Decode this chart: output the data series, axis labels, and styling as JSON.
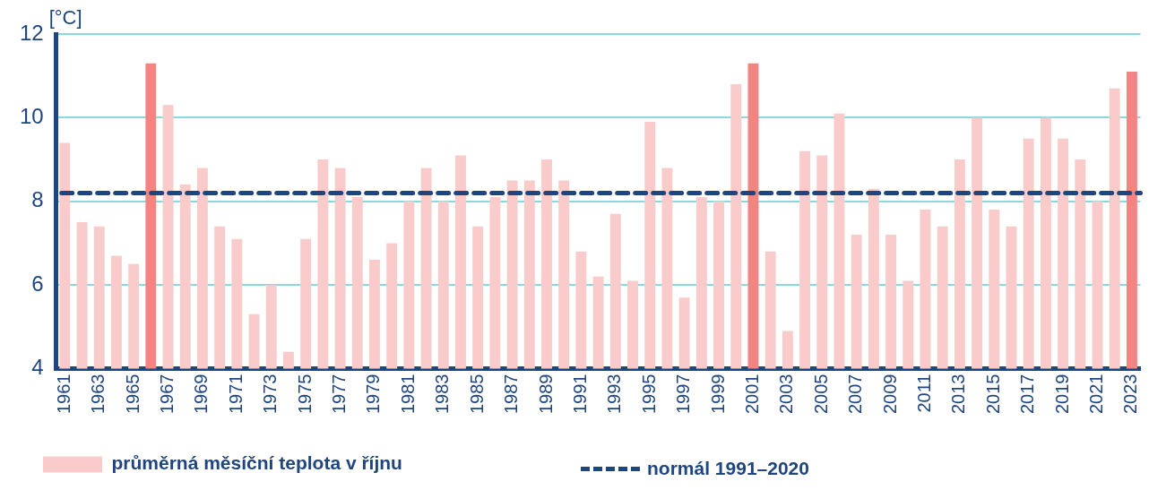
{
  "chart_data": {
    "type": "bar",
    "ylabel": "[°C]",
    "categories": [
      "1961",
      null,
      "1963",
      null,
      "1965",
      null,
      "1967",
      null,
      "1969",
      null,
      "1971",
      null,
      "1973",
      null,
      "1975",
      null,
      "1977",
      null,
      "1979",
      null,
      "1981",
      null,
      "1983",
      null,
      "1985",
      null,
      "1987",
      null,
      "1989",
      null,
      "1991",
      null,
      "1993",
      null,
      "1995",
      null,
      "1997",
      null,
      "1999",
      null,
      "2001",
      null,
      "2003",
      null,
      "2005",
      null,
      "2007",
      null,
      "2009",
      null,
      "2011",
      null,
      "2013",
      null,
      "2015",
      null,
      "2017",
      null,
      "2019",
      null,
      "2021",
      null,
      "2023"
    ],
    "series": [
      {
        "name": "průměrná měsíční teplota v říjnu",
        "color": "#f9cccb",
        "colors": [
          "#f9cccb",
          "#f9cccb",
          "#f9cccb",
          "#f9cccb",
          "#f9cccb",
          "#f28482",
          "#f9cccb",
          "#f9cccb",
          "#f9cccb",
          "#f9cccb",
          "#f9cccb",
          "#f9cccb",
          "#f9cccb",
          "#f9cccb",
          "#f9cccb",
          "#f9cccb",
          "#f9cccb",
          "#f9cccb",
          "#f9cccb",
          "#f9cccb",
          "#f9cccb",
          "#f9cccb",
          "#f9cccb",
          "#f9cccb",
          "#f9cccb",
          "#f9cccb",
          "#f9cccb",
          "#f9cccb",
          "#f9cccb",
          "#f9cccb",
          "#f9cccb",
          "#f9cccb",
          "#f9cccb",
          "#f9cccb",
          "#f9cccb",
          "#f9cccb",
          "#f9cccb",
          "#f9cccb",
          "#f9cccb",
          "#f9cccb",
          "#f28482",
          "#f9cccb",
          "#f9cccb",
          "#f9cccb",
          "#f9cccb",
          "#f9cccb",
          "#f9cccb",
          "#f9cccb",
          "#f9cccb",
          "#f9cccb",
          "#f9cccb",
          "#f9cccb",
          "#f9cccb",
          "#f9cccb",
          "#f9cccb",
          "#f9cccb",
          "#f9cccb",
          "#f9cccb",
          "#f9cccb",
          "#f9cccb",
          "#f9cccb",
          "#f9cccb",
          "#f28482"
        ],
        "values": [
          9.4,
          7.5,
          7.4,
          6.7,
          6.5,
          11.3,
          10.3,
          8.4,
          8.8,
          7.4,
          7.1,
          5.3,
          6.0,
          4.4,
          7.1,
          9.0,
          8.8,
          8.1,
          6.6,
          7.0,
          8.0,
          8.8,
          8.0,
          9.1,
          7.4,
          8.1,
          8.5,
          8.5,
          9.0,
          8.5,
          6.8,
          6.2,
          7.7,
          6.1,
          9.9,
          8.8,
          5.7,
          8.1,
          8.0,
          10.8,
          11.3,
          6.8,
          4.9,
          9.2,
          9.1,
          10.1,
          7.2,
          8.3,
          7.2,
          6.1,
          7.8,
          7.4,
          9.0,
          10.0,
          7.8,
          7.4,
          9.5,
          10.0,
          9.5,
          9.0,
          8.0,
          10.7,
          11.1
        ]
      }
    ],
    "ref_lines": [
      {
        "axis": "y",
        "value": 8.2,
        "label": "normál 1991–2020",
        "color": "#1f4580",
        "line_style": "dashed"
      }
    ],
    "ylim": [
      4,
      12
    ],
    "yticks": [
      4,
      6,
      8,
      10,
      12
    ],
    "grid": "y",
    "legend": "bottom"
  }
}
